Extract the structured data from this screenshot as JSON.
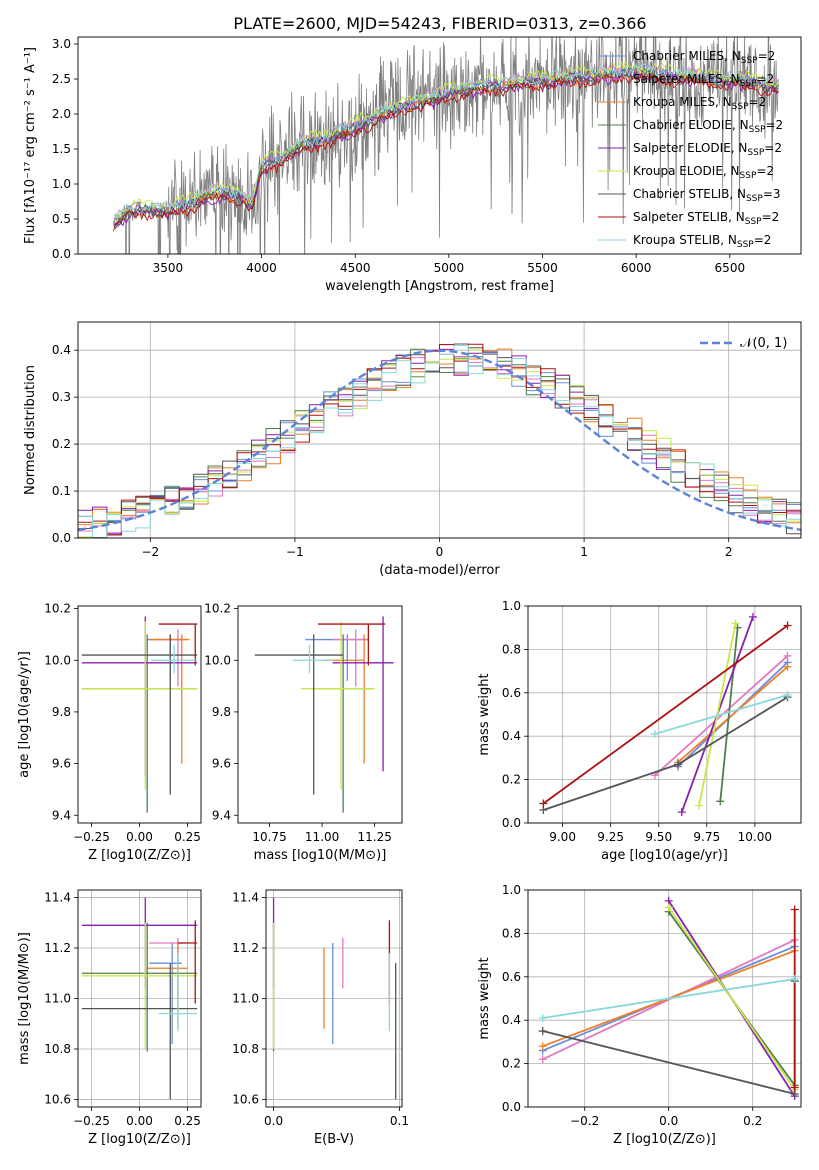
{
  "figure_title": "PLATE=2600, MJD=54243, FIBERID=0313, z=0.366",
  "colors": {
    "chabrier_miles": "#6a8fd8",
    "salpeter_miles": "#e377c2",
    "kroupa_miles": "#ee7f27",
    "chabrier_elodie": "#4f7f4f",
    "salpeter_elodie": "#8a1faf",
    "kroupa_elodie": "#c8e84a",
    "chabrier_stelib": "#555555",
    "salpeter_stelib": "#b01010",
    "kroupa_stelib": "#88d8dc",
    "data": "#808080"
  },
  "chart_data": [
    {
      "type": "line",
      "id": "spectrum",
      "title": "PLATE=2600, MJD=54243, FIBERID=0313, z=0.366",
      "xlabel": "wavelength [Angstrom, rest frame]",
      "ylabel": "Flux [fλ10⁻¹⁷ erg cm⁻² s⁻¹ A⁻¹]",
      "xlim": [
        3020,
        6880
      ],
      "ylim": [
        0,
        3.1
      ],
      "xticks": [
        3500,
        4000,
        4500,
        5000,
        5500,
        6000,
        6500
      ],
      "yticks": [
        0.0,
        0.5,
        1.0,
        1.5,
        2.0,
        2.5,
        3.0
      ],
      "legend_position": "top-right",
      "legend": [
        {
          "label": "Chabrier MILES, N_SSP=2",
          "text": "Chabrier MILES, N",
          "sub": "SSP",
          "tail": "=2",
          "color": "#6a8fd8"
        },
        {
          "label": "Salpeter MILES, N_SSP=2",
          "text": "Salpeter MILES, N",
          "sub": "SSP",
          "tail": "=2",
          "color": "#e377c2"
        },
        {
          "label": "Kroupa MILES, N_SSP=2",
          "text": "Kroupa MILES, N",
          "sub": "SSP",
          "tail": "=2",
          "color": "#ee7f27"
        },
        {
          "label": "Chabrier ELODIE, N_SSP=2",
          "text": "Chabrier ELODIE, N",
          "sub": "SSP",
          "tail": "=2",
          "color": "#4f7f4f"
        },
        {
          "label": "Salpeter ELODIE, N_SSP=2",
          "text": "Salpeter ELODIE, N",
          "sub": "SSP",
          "tail": "=2",
          "color": "#8a1faf"
        },
        {
          "label": "Kroupa ELODIE, N_SSP=2",
          "text": "Kroupa ELODIE, N",
          "sub": "SSP",
          "tail": "=2",
          "color": "#c8e84a"
        },
        {
          "label": "Chabrier STELIB, N_SSP=3",
          "text": "Chabrier STELIB, N",
          "sub": "SSP",
          "tail": "=3",
          "color": "#555555"
        },
        {
          "label": "Salpeter STELIB, N_SSP=2",
          "text": "Salpeter STELIB, N",
          "sub": "SSP",
          "tail": "=2",
          "color": "#b01010"
        },
        {
          "label": "Kroupa STELIB, N_SSP=2",
          "text": "Kroupa STELIB, N",
          "sub": "SSP",
          "tail": "=2",
          "color": "#88d8dc"
        }
      ],
      "continuum_model": {
        "x": [
          3210,
          3300,
          3400,
          3500,
          3600,
          3700,
          3800,
          3900,
          3950,
          4000,
          4100,
          4200,
          4300,
          4400,
          4500,
          4600,
          4700,
          4800,
          4900,
          5000,
          5200,
          5400,
          5600,
          5800,
          6000,
          6200,
          6400,
          6600,
          6750
        ],
        "y": [
          0.45,
          0.62,
          0.65,
          0.62,
          0.7,
          0.82,
          0.88,
          0.82,
          0.7,
          1.25,
          1.35,
          1.55,
          1.6,
          1.7,
          1.8,
          1.95,
          2.05,
          2.15,
          2.2,
          2.3,
          2.4,
          2.45,
          2.5,
          2.55,
          2.6,
          2.55,
          2.5,
          2.45,
          2.4
        ]
      }
    },
    {
      "type": "bar",
      "id": "residuals",
      "xlabel": "(data-model)/error",
      "ylabel": "Normed distribution",
      "xlim": [
        -2.5,
        2.5
      ],
      "ylim": [
        0,
        0.46
      ],
      "xticks": [
        -2,
        -1,
        0,
        1,
        2
      ],
      "yticks": [
        0.0,
        0.1,
        0.2,
        0.3,
        0.4
      ],
      "gaussian_label": "𝒩(0, 1)",
      "gaussian_color": "#5b84d6",
      "legend_position": "top-right"
    },
    {
      "type": "scatter",
      "id": "age_vs_Z",
      "xlabel": "Z [log10(Z/Z⊙)]",
      "ylabel": "age  [log10(age/yr)]",
      "xlim": [
        -0.32,
        0.32
      ],
      "ylim": [
        9.37,
        10.21
      ],
      "xticks": [
        -0.25,
        0.0,
        0.25
      ],
      "yticks": [
        9.4,
        9.6,
        9.8,
        10.0,
        10.2
      ],
      "crosses": [
        {
          "model": "chabrier_miles",
          "x": 0.16,
          "y": 10.08,
          "x0": 0.04,
          "x1": 0.22,
          "y0": 9.92,
          "y1": 10.1
        },
        {
          "model": "salpeter_miles",
          "x": 0.2,
          "y": 10.08,
          "x0": 0.08,
          "x1": 0.24,
          "y0": 9.9,
          "y1": 10.12
        },
        {
          "model": "kroupa_miles",
          "x": 0.22,
          "y": 10.08,
          "x0": 0.05,
          "x1": 0.26,
          "y0": 9.6,
          "y1": 10.1
        },
        {
          "model": "chabrier_elodie",
          "x": 0.04,
          "y": 9.89,
          "x0": -0.3,
          "x1": 0.3,
          "y0": 9.41,
          "y1": 10.1
        },
        {
          "model": "salpeter_elodie",
          "x": 0.03,
          "y": 9.99,
          "x0": -0.3,
          "x1": 0.3,
          "y0": 9.55,
          "y1": 10.17
        },
        {
          "model": "kroupa_elodie",
          "x": 0.03,
          "y": 9.89,
          "x0": -0.3,
          "x1": 0.3,
          "y0": 9.5,
          "y1": 10.15
        },
        {
          "model": "chabrier_stelib",
          "x": 0.16,
          "y": 10.02,
          "x0": -0.3,
          "x1": 0.3,
          "y0": 9.48,
          "y1": 10.1
        },
        {
          "model": "salpeter_stelib",
          "x": 0.29,
          "y": 10.14,
          "x0": 0.1,
          "x1": 0.3,
          "y0": 9.98,
          "y1": 10.14
        },
        {
          "model": "kroupa_stelib",
          "x": 0.18,
          "y": 10.0,
          "x0": 0.06,
          "x1": 0.3,
          "y0": 9.95,
          "y1": 10.06
        }
      ]
    },
    {
      "type": "scatter",
      "id": "age_vs_mass",
      "xlabel": "mass [log10(M/M⊙)]",
      "xlim": [
        10.6,
        11.38
      ],
      "ylim": [
        9.37,
        10.21
      ],
      "xticks": [
        10.75,
        11.0,
        11.25
      ],
      "yticks": [
        9.4,
        9.6,
        9.8,
        10.0,
        10.2
      ],
      "crosses": [
        {
          "model": "chabrier_miles",
          "x": 11.12,
          "y": 10.08,
          "x0": 10.92,
          "x1": 11.22,
          "y0": 9.92,
          "y1": 10.1
        },
        {
          "model": "salpeter_miles",
          "x": 11.16,
          "y": 10.08,
          "x0": 11.05,
          "x1": 11.22,
          "y0": 9.9,
          "y1": 10.12
        },
        {
          "model": "kroupa_miles",
          "x": 11.2,
          "y": 10.0,
          "x0": 11.0,
          "x1": 11.2,
          "y0": 9.6,
          "y1": 10.1
        },
        {
          "model": "chabrier_elodie",
          "x": 11.1,
          "y": 9.89,
          "x0": 10.95,
          "x1": 11.24,
          "y0": 9.41,
          "y1": 10.1
        },
        {
          "model": "salpeter_elodie",
          "x": 11.29,
          "y": 9.99,
          "x0": 11.05,
          "x1": 11.34,
          "y0": 9.57,
          "y1": 10.17
        },
        {
          "model": "kroupa_elodie",
          "x": 11.09,
          "y": 9.89,
          "x0": 10.9,
          "x1": 11.25,
          "y0": 9.5,
          "y1": 10.15
        },
        {
          "model": "chabrier_stelib",
          "x": 10.96,
          "y": 10.02,
          "x0": 10.68,
          "x1": 11.1,
          "y0": 9.48,
          "y1": 10.1
        },
        {
          "model": "salpeter_stelib",
          "x": 11.22,
          "y": 10.14,
          "x0": 10.98,
          "x1": 11.3,
          "y0": 9.98,
          "y1": 10.14
        },
        {
          "model": "kroupa_stelib",
          "x": 10.94,
          "y": 10.0,
          "x0": 10.86,
          "x1": 11.05,
          "y0": 9.95,
          "y1": 10.06
        }
      ]
    },
    {
      "type": "line",
      "id": "weight_vs_age",
      "xlabel": "age  [log10(age/yr)]",
      "ylabel": "mass weight",
      "xlim": [
        8.82,
        10.24
      ],
      "ylim": [
        0,
        1.0
      ],
      "xticks": [
        9.0,
        9.25,
        9.5,
        9.75,
        10.0
      ],
      "yticks": [
        0.0,
        0.2,
        0.4,
        0.6,
        0.8,
        1.0
      ],
      "series": [
        {
          "model": "chabrier_miles",
          "x": [
            9.6,
            10.17
          ],
          "y": [
            0.26,
            0.74
          ]
        },
        {
          "model": "salpeter_miles",
          "x": [
            9.48,
            10.17
          ],
          "y": [
            0.22,
            0.77
          ]
        },
        {
          "model": "kroupa_miles",
          "x": [
            9.6,
            10.17
          ],
          "y": [
            0.28,
            0.72
          ]
        },
        {
          "model": "chabrier_elodie",
          "x": [
            9.82,
            9.91
          ],
          "y": [
            0.1,
            0.9
          ]
        },
        {
          "model": "salpeter_elodie",
          "x": [
            9.62,
            9.99
          ],
          "y": [
            0.05,
            0.95
          ]
        },
        {
          "model": "kroupa_elodie",
          "x": [
            9.71,
            9.9
          ],
          "y": [
            0.08,
            0.92
          ]
        },
        {
          "model": "chabrier_stelib",
          "x": [
            8.9,
            9.6,
            10.17
          ],
          "y": [
            0.06,
            0.27,
            0.58
          ]
        },
        {
          "model": "salpeter_stelib",
          "x": [
            8.9,
            10.17
          ],
          "y": [
            0.09,
            0.91
          ]
        },
        {
          "model": "kroupa_stelib",
          "x": [
            9.48,
            10.17
          ],
          "y": [
            0.41,
            0.59
          ]
        }
      ]
    },
    {
      "type": "scatter",
      "id": "mass_vs_Z",
      "xlabel": "Z [log10(Z/Z⊙)]",
      "ylabel": "mass [log10(M/M⊙)]",
      "xlim": [
        -0.32,
        0.32
      ],
      "ylim": [
        10.57,
        11.43
      ],
      "xticks": [
        -0.25,
        0.0,
        0.25
      ],
      "yticks": [
        10.6,
        10.8,
        11.0,
        11.2,
        11.4
      ],
      "crosses": [
        {
          "model": "chabrier_miles",
          "x": 0.17,
          "y": 11.14,
          "x0": 0.05,
          "x1": 0.22,
          "y0": 10.82,
          "y1": 11.22
        },
        {
          "model": "salpeter_miles",
          "x": 0.2,
          "y": 11.22,
          "x0": 0.05,
          "x1": 0.24,
          "y0": 11.0,
          "y1": 11.24
        },
        {
          "model": "kroupa_miles",
          "x": 0.2,
          "y": 11.12,
          "x0": 0.04,
          "x1": 0.25,
          "y0": 10.88,
          "y1": 11.22
        },
        {
          "model": "chabrier_elodie",
          "x": 0.04,
          "y": 11.1,
          "x0": -0.3,
          "x1": 0.3,
          "y0": 10.79,
          "y1": 11.3
        },
        {
          "model": "salpeter_elodie",
          "x": 0.03,
          "y": 11.29,
          "x0": -0.3,
          "x1": 0.3,
          "y0": 11.04,
          "y1": 11.4
        },
        {
          "model": "kroupa_elodie",
          "x": 0.03,
          "y": 11.09,
          "x0": -0.3,
          "x1": 0.3,
          "y0": 10.8,
          "y1": 11.3
        },
        {
          "model": "chabrier_stelib",
          "x": 0.16,
          "y": 10.96,
          "x0": -0.3,
          "x1": 0.3,
          "y0": 10.6,
          "y1": 11.14
        },
        {
          "model": "salpeter_stelib",
          "x": 0.29,
          "y": 11.22,
          "x0": 0.2,
          "x1": 0.3,
          "y0": 10.98,
          "y1": 11.31
        },
        {
          "model": "kroupa_stelib",
          "x": 0.2,
          "y": 10.94,
          "x0": 0.1,
          "x1": 0.3,
          "y0": 10.87,
          "y1": 11.18
        }
      ]
    },
    {
      "type": "scatter",
      "id": "mass_vs_ebv",
      "xlabel": "E(B-V)",
      "xlim": [
        -0.006,
        0.102
      ],
      "ylim": [
        10.57,
        11.43
      ],
      "xticks": [
        0.0,
        0.1
      ],
      "yticks": [
        10.6,
        10.8,
        11.0,
        11.2,
        11.4
      ],
      "crosses": [
        {
          "model": "chabrier_miles",
          "x": 0.047,
          "y": 11.1,
          "y0": 10.82,
          "y1": 11.22
        },
        {
          "model": "salpeter_miles",
          "x": 0.055,
          "y": 11.2,
          "y0": 11.04,
          "y1": 11.24
        },
        {
          "model": "kroupa_miles",
          "x": 0.04,
          "y": 11.0,
          "y0": 10.88,
          "y1": 11.2
        },
        {
          "model": "chabrier_elodie",
          "x": 0.0,
          "y": 11.1,
          "y0": 10.79,
          "y1": 11.3
        },
        {
          "model": "salpeter_elodie",
          "x": 0.0,
          "y": 11.29,
          "y0": 11.04,
          "y1": 11.4
        },
        {
          "model": "kroupa_elodie",
          "x": 0.0,
          "y": 11.09,
          "y0": 10.8,
          "y1": 11.3
        },
        {
          "model": "chabrier_stelib",
          "x": 0.097,
          "y": 10.96,
          "y0": 10.6,
          "y1": 11.14
        },
        {
          "model": "salpeter_stelib",
          "x": 0.092,
          "y": 11.22,
          "y0": 10.98,
          "y1": 11.31
        },
        {
          "model": "kroupa_stelib",
          "x": 0.092,
          "y": 10.94,
          "y0": 10.87,
          "y1": 11.18
        }
      ]
    },
    {
      "type": "line",
      "id": "weight_vs_Z",
      "xlabel": "Z [log10(Z/Z⊙)]",
      "ylabel": "mass weight",
      "xlim": [
        -0.335,
        0.315
      ],
      "ylim": [
        0,
        1.0
      ],
      "xticks": [
        -0.2,
        0.0,
        0.2
      ],
      "yticks": [
        0.0,
        0.2,
        0.4,
        0.6,
        0.8,
        1.0
      ],
      "series": [
        {
          "model": "chabrier_miles",
          "x": [
            -0.3,
            0.3
          ],
          "y": [
            0.26,
            0.74
          ]
        },
        {
          "model": "salpeter_miles",
          "x": [
            -0.3,
            0.3
          ],
          "y": [
            0.22,
            0.77
          ]
        },
        {
          "model": "kroupa_miles",
          "x": [
            -0.3,
            0.3
          ],
          "y": [
            0.28,
            0.72
          ]
        },
        {
          "model": "chabrier_elodie",
          "x": [
            0.0,
            0.3
          ],
          "y": [
            0.9,
            0.1
          ]
        },
        {
          "model": "salpeter_elodie",
          "x": [
            0.0,
            0.3
          ],
          "y": [
            0.95,
            0.05
          ]
        },
        {
          "model": "kroupa_elodie",
          "x": [
            0.0,
            0.3
          ],
          "y": [
            0.92,
            0.08
          ]
        },
        {
          "model": "chabrier_stelib",
          "x": [
            -0.3,
            0.3,
            0.3
          ],
          "y": [
            0.35,
            0.06,
            0.58
          ]
        },
        {
          "model": "salpeter_stelib",
          "x": [
            0.3,
            0.3
          ],
          "y": [
            0.09,
            0.91
          ]
        },
        {
          "model": "kroupa_stelib",
          "x": [
            -0.3,
            0.3
          ],
          "y": [
            0.41,
            0.59
          ]
        }
      ]
    }
  ]
}
